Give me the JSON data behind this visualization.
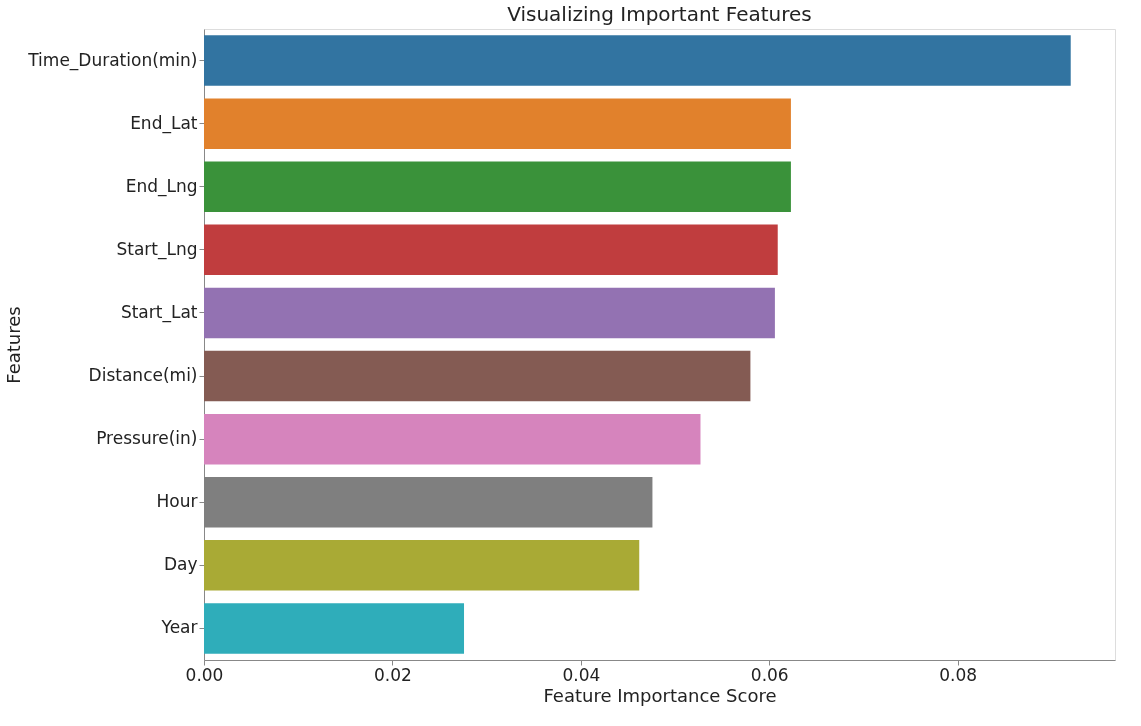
{
  "chart_data": {
    "type": "bar",
    "orientation": "horizontal",
    "title": "Visualizing Important Features",
    "xlabel": "Feature Importance Score",
    "ylabel": "Features",
    "categories": [
      "Time_Duration(min)",
      "End_Lat",
      "End_Lng",
      "Start_Lng",
      "Start_Lat",
      "Distance(mi)",
      "Pressure(in)",
      "Hour",
      "Day",
      "Year"
    ],
    "values": [
      0.092,
      0.0623,
      0.0623,
      0.0609,
      0.0606,
      0.058,
      0.0527,
      0.0476,
      0.0462,
      0.0276
    ],
    "colors": [
      "#3274a1",
      "#e1812c",
      "#3a923a",
      "#c03d3e",
      "#9372b2",
      "#845b53",
      "#d684bd",
      "#7f7f7f",
      "#a9aa35",
      "#2fadba"
    ],
    "xlim": [
      0,
      0.0967
    ],
    "xticks": [
      {
        "value": 0,
        "label": "0.00"
      },
      0.02,
      0.04,
      0.06,
      0.08
    ],
    "grid": false
  }
}
